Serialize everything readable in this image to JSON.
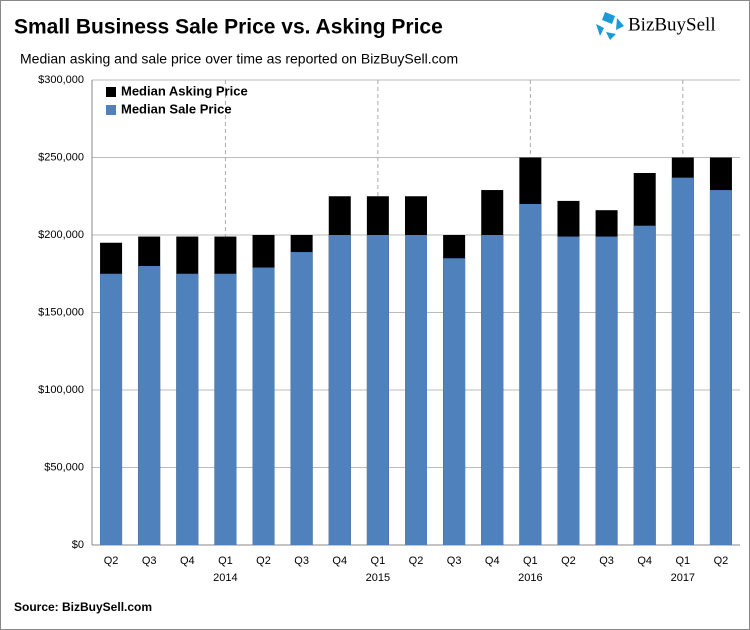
{
  "chart_data": {
    "type": "bar",
    "title": "Small Business Sale Price vs. Asking Price",
    "subtitle": "Median asking and sale price over time as reported  on  BizBuySell.com",
    "source": "Source: BizBuySell.com",
    "logo": "BizBuySell",
    "categories": [
      "Q2",
      "Q3",
      "Q4",
      "Q1",
      "Q2",
      "Q3",
      "Q4",
      "Q1",
      "Q2",
      "Q3",
      "Q4",
      "Q1",
      "Q2",
      "Q3",
      "Q4",
      "Q1",
      "Q2"
    ],
    "years": [
      null,
      null,
      null,
      "2014",
      null,
      null,
      null,
      "2015",
      null,
      null,
      null,
      "2016",
      null,
      null,
      null,
      "2017",
      null
    ],
    "series": [
      {
        "name": "Median Asking Price",
        "color": "#000000",
        "values": [
          195000,
          199000,
          199000,
          199000,
          200000,
          200000,
          225000,
          225000,
          225000,
          200000,
          229000,
          250000,
          222000,
          216000,
          240000,
          250000,
          250000
        ]
      },
      {
        "name": "Median Sale Price",
        "color": "#4f81bd",
        "values": [
          175000,
          180000,
          175000,
          175000,
          179000,
          189000,
          200000,
          200000,
          200000,
          185000,
          200000,
          220000,
          199000,
          199000,
          206000,
          237000,
          229000
        ]
      }
    ],
    "ylim": [
      0,
      300000
    ],
    "yticks": [
      {
        "value": 0,
        "label": "$0"
      },
      {
        "value": 50000,
        "label": "$50,000"
      },
      {
        "value": 100000,
        "label": "$100,000"
      },
      {
        "value": 150000,
        "label": "$150,000"
      },
      {
        "value": 200000,
        "label": "$200,000"
      },
      {
        "value": 250000,
        "label": "$250,000"
      },
      {
        "value": 300000,
        "label": "$300,000"
      }
    ],
    "grid": true,
    "legend": "upper left"
  }
}
